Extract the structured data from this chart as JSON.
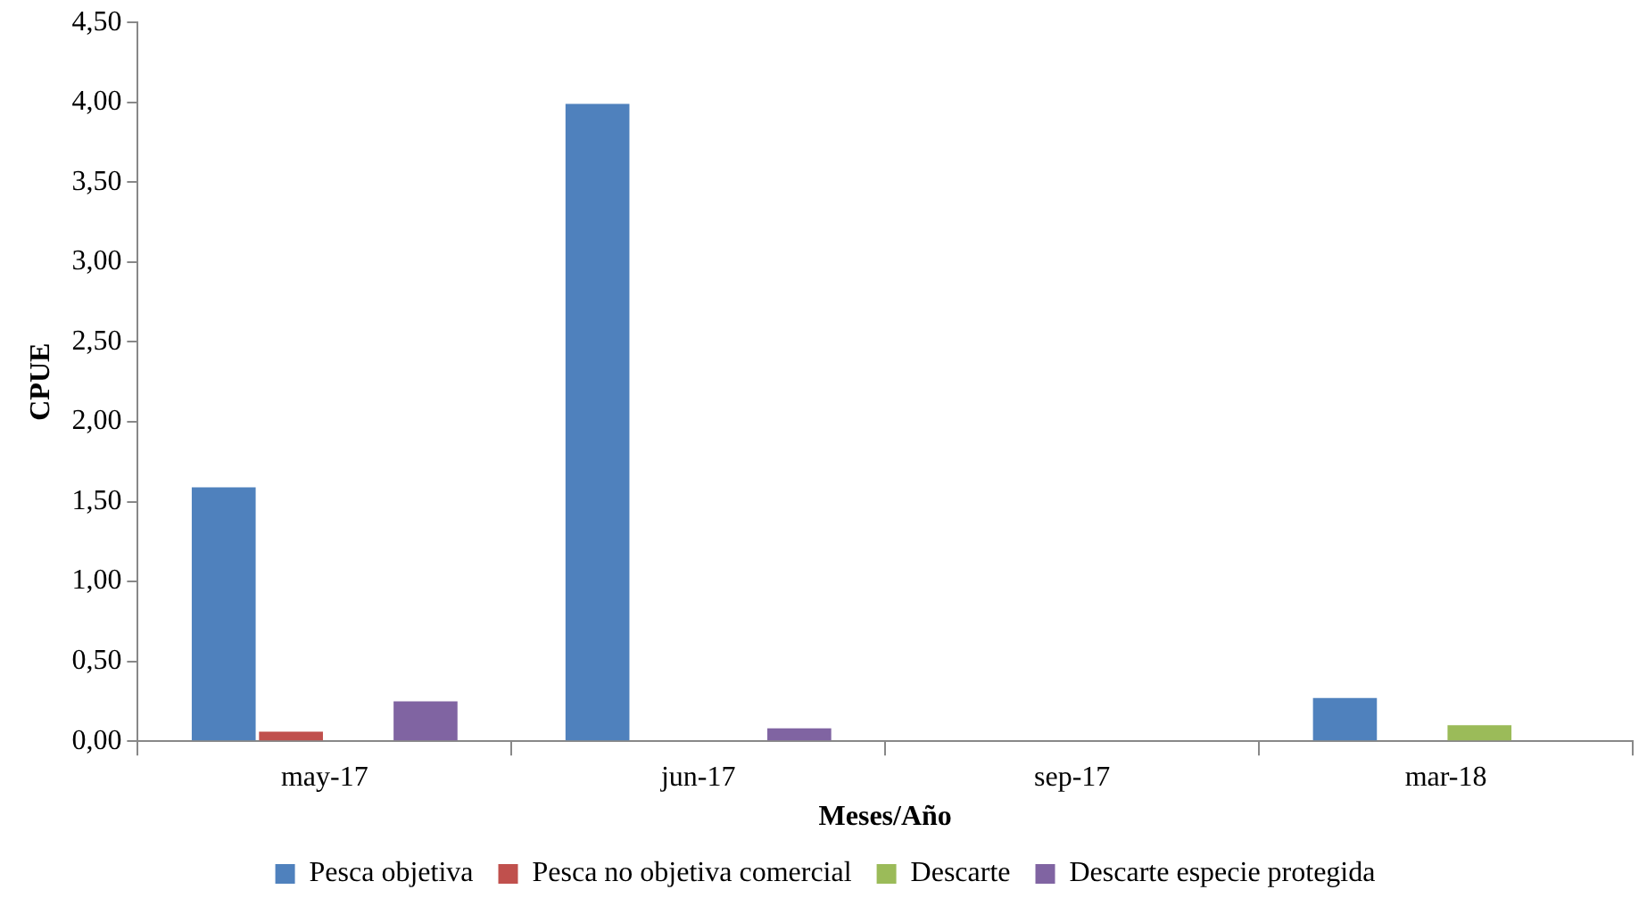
{
  "chart_data": {
    "type": "bar",
    "xlabel": "Meses/Año",
    "ylabel": "CPUE",
    "categories": [
      "may-17",
      "jun-17",
      "sep-17",
      "mar-18"
    ],
    "series": [
      {
        "name": "Pesca objetiva",
        "color": "#4f81bd",
        "values": [
          1.59,
          3.99,
          0,
          0.27
        ]
      },
      {
        "name": "Pesca no objetiva comercial",
        "color": "#c0504d",
        "values": [
          0.06,
          0,
          0,
          0
        ]
      },
      {
        "name": "Descarte",
        "color": "#9bbb59",
        "values": [
          0,
          0,
          0,
          0.1
        ]
      },
      {
        "name": "Descarte especie protegida",
        "color": "#8064a2",
        "values": [
          0.25,
          0.08,
          0,
          0
        ]
      }
    ],
    "ylim": [
      0,
      4.5
    ],
    "yticks": [
      {
        "value": 0,
        "label": "0,00"
      },
      {
        "value": 0.5,
        "label": "0,50"
      },
      {
        "value": 1,
        "label": "1,00"
      },
      {
        "value": 1.5,
        "label": "1,50"
      },
      {
        "value": 2,
        "label": "2,00"
      },
      {
        "value": 2.5,
        "label": "2,50"
      },
      {
        "value": 3,
        "label": "3,00"
      },
      {
        "value": 3.5,
        "label": "3,50"
      },
      {
        "value": 4,
        "label": "4,00"
      },
      {
        "value": 4.5,
        "label": "4,50"
      }
    ],
    "grid": false,
    "legend": "bottom"
  }
}
